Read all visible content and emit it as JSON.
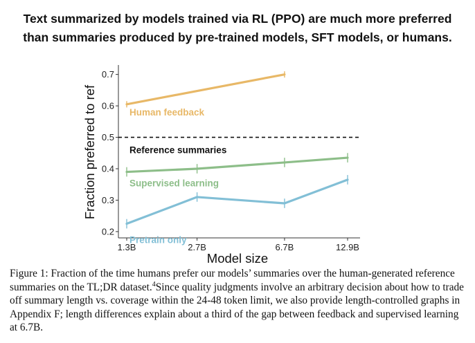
{
  "headline": {
    "line1": "Text summarized by models trained via RL (PPO) are much more preferred",
    "line2": "than summaries produced by pre-trained models, SFT models, or humans."
  },
  "chart_data": {
    "type": "line",
    "xlabel": "Model size",
    "ylabel": "Fraction preferred to ref",
    "categories": [
      "1.3B",
      "2.7B",
      "6.7B",
      "12.9B"
    ],
    "x_values": [
      1.3,
      2.7,
      6.7,
      12.9
    ],
    "x_scale": "log",
    "ylim": [
      0.18,
      0.73
    ],
    "yticks": [
      0.2,
      0.3,
      0.4,
      0.5,
      0.6,
      0.7
    ],
    "ytick_labels": [
      "0.2",
      "0.3",
      "0.4",
      "0.5",
      "0.6",
      "0.7"
    ],
    "series": [
      {
        "name": "Human feedback",
        "color": "#e8b867",
        "x": [
          1.3,
          6.7
        ],
        "values": [
          0.605,
          0.7
        ],
        "err": [
          0.01,
          0.01
        ],
        "label_at": [
          1.3,
          0.58
        ]
      },
      {
        "name": "Supervised learning",
        "color": "#8dbe89",
        "x": [
          1.3,
          2.7,
          6.7,
          12.9
        ],
        "values": [
          0.39,
          0.4,
          0.42,
          0.435
        ],
        "err": [
          0.015,
          0.015,
          0.015,
          0.015
        ],
        "label_at": [
          1.3,
          0.355
        ]
      },
      {
        "name": "Pretrain only",
        "color": "#82bfd6",
        "x": [
          1.3,
          2.7,
          6.7,
          12.9
        ],
        "values": [
          0.225,
          0.31,
          0.29,
          0.365
        ],
        "err": [
          0.015,
          0.015,
          0.015,
          0.015
        ],
        "label_at": [
          1.3,
          0.175
        ]
      }
    ],
    "reference": {
      "name": "Reference summaries",
      "value": 0.5,
      "style": "dashed",
      "color": "#111111",
      "label_at": [
        1.3,
        0.46
      ]
    }
  },
  "caption": {
    "prefix": "Figure 1:  Fraction of the time humans prefer our models’ summaries over the human-generated reference summaries on the TL;DR dataset.",
    "footnote_mark": "4",
    "suffix": "Since quality judgments involve an arbitrary decision about how to trade off summary length vs. coverage within the 24-48 token limit, we also provide length-controlled graphs in Appendix F; length differences explain about a third of the gap between feedback and supervised learning at 6.7B."
  }
}
